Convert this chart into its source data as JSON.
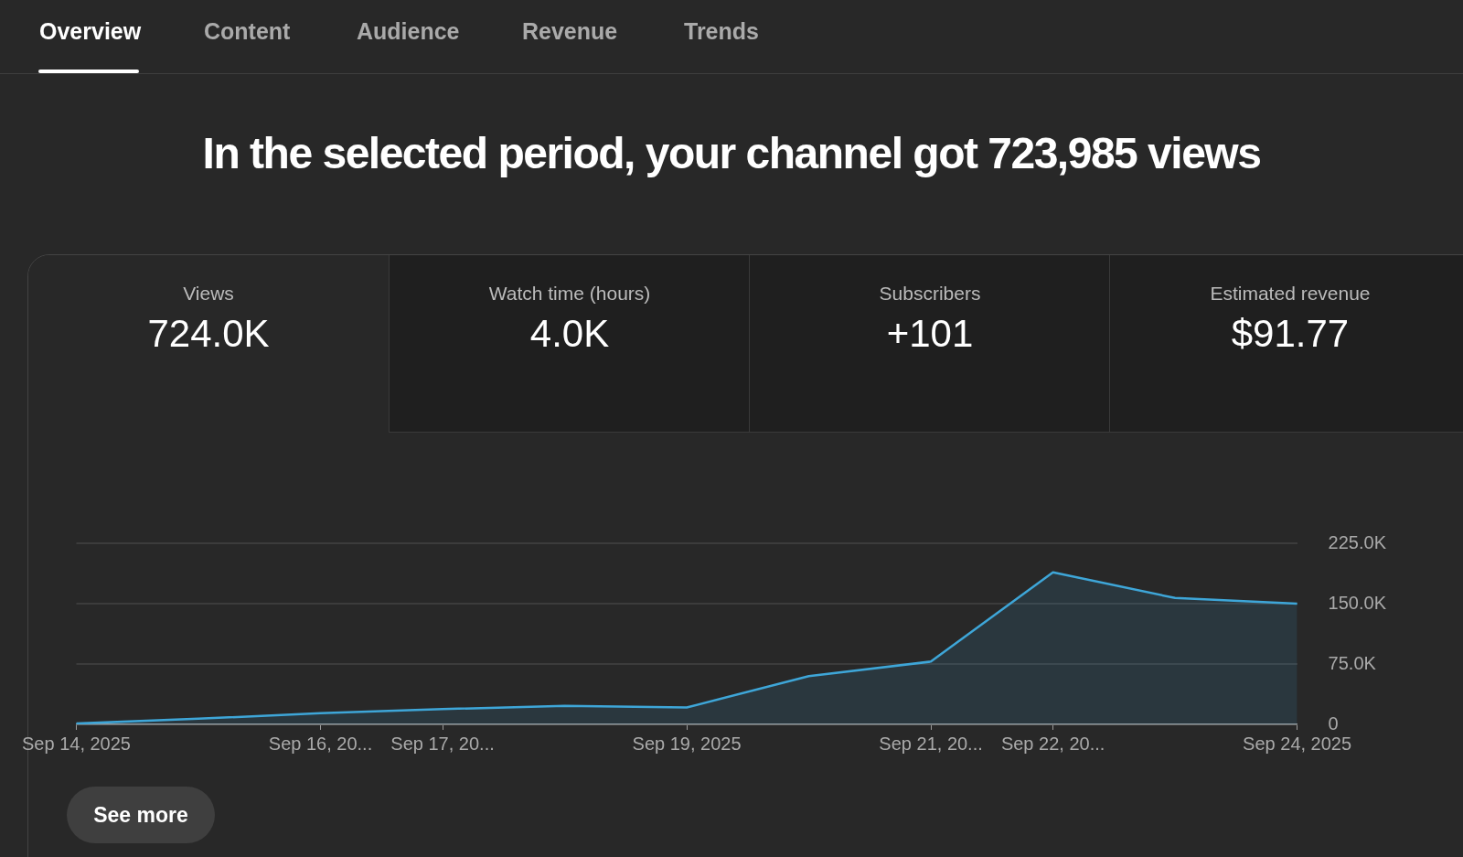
{
  "chart_data": {
    "type": "area",
    "title": "In the selected period, your channel got 723,985 views",
    "annotations": [
      "Overview",
      "Content",
      "Audience",
      "Revenue",
      "Trends",
      "Views",
      "724.0K",
      "Watch time (hours)",
      "4.0K",
      "Subscribers",
      "+101",
      "Estimated revenue",
      "$91.77",
      "See more"
    ],
    "categories": [
      "Sep 14, 2025",
      null,
      "Sep 16, 20...",
      "Sep 17, 20...",
      null,
      "Sep 19, 2025",
      null,
      "Sep 21, 20...",
      "Sep 22, 20...",
      null,
      "Sep 24, 2025"
    ],
    "values": [
      1000,
      7000,
      14000,
      19000,
      23000,
      21000,
      60000,
      78000,
      189000,
      157000,
      150000
    ],
    "color": "#3ea6d8",
    "ylim": [
      0,
      225000
    ],
    "yticks": [
      {
        "value": 0,
        "label": "0"
      },
      {
        "value": 75000,
        "label": "75.0K"
      },
      {
        "value": 150000,
        "label": "150.0K"
      },
      {
        "value": 225000,
        "label": "225.0K"
      }
    ],
    "grid": "y",
    "legend": false,
    "marker": "none",
    "line_style": "solid"
  }
}
